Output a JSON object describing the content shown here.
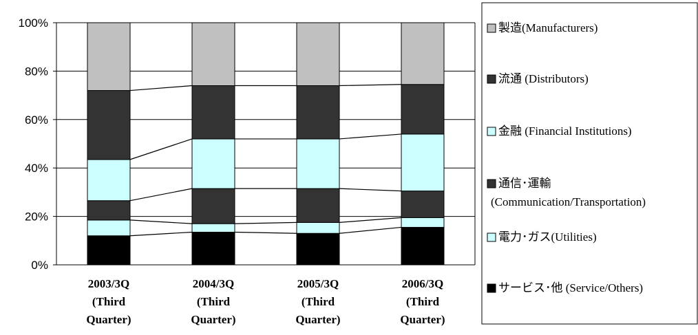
{
  "chart_data": {
    "type": "bar",
    "stacked": true,
    "normalized": true,
    "categories": [
      [
        "2003/3Q",
        "(Third",
        "Quarter)"
      ],
      [
        "2004/3Q",
        "(Third",
        "Quarter)"
      ],
      [
        "2005/3Q",
        "(Third",
        "Quarter)"
      ],
      [
        "2006/3Q",
        "(Third",
        "Quarter)"
      ]
    ],
    "y_ticks": [
      "0%",
      "20%",
      "40%",
      "60%",
      "80%",
      "100%"
    ],
    "ylim": [
      0,
      100
    ],
    "series_connectors": true,
    "legend_position": "right",
    "series": [
      {
        "name_ja": "サービス･他",
        "name_en": "(Service/Others)",
        "color": "#000000",
        "values": [
          12,
          13.5,
          13,
          15.5
        ]
      },
      {
        "name_ja": "電力･ガス",
        "name_en": "(Utilities)",
        "color": "#ccffff",
        "values": [
          6.5,
          3.5,
          4.5,
          4
        ]
      },
      {
        "name_ja": "通信･運輸",
        "name_en": "(Communication/Transportation)",
        "color": "#333333",
        "values": [
          8,
          14.5,
          14,
          11
        ]
      },
      {
        "name_ja": "金融",
        "name_en": "(Financial Institutions)",
        "color": "#ccffff",
        "values": [
          17,
          20.5,
          20.5,
          23.5
        ]
      },
      {
        "name_ja": "流通",
        "name_en": "(Distributors)",
        "color": "#333333",
        "values": [
          28.5,
          22,
          22,
          20.5
        ]
      },
      {
        "name_ja": "製造",
        "name_en": "(Manufacturers)",
        "color": "#c0c0c0",
        "values": [
          28,
          26,
          26,
          25.5
        ]
      }
    ],
    "legend_order": [
      5,
      4,
      3,
      2,
      1,
      0
    ],
    "legend_rows": [
      [
        "製造",
        "(Manufacturers)"
      ],
      [
        "流通",
        " (Distributors)"
      ],
      [
        "金融",
        " (Financial Institutions)"
      ],
      [
        "通信･運輸",
        ""
      ],
      [
        "",
        "(Communication/Transportation)"
      ],
      [
        "電力･ガス",
        "(Utilities)"
      ],
      [
        "サービス･他",
        " (Service/Others)"
      ]
    ]
  }
}
